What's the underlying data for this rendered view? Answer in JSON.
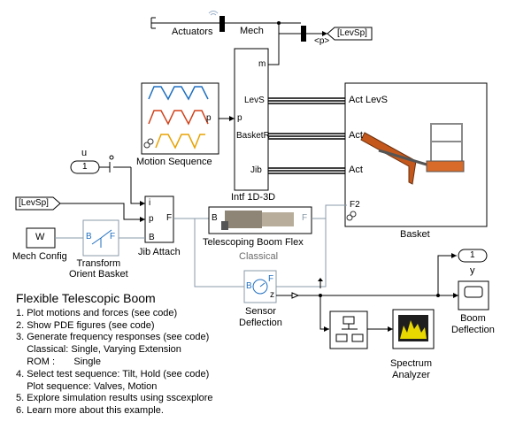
{
  "blocks": {
    "actuators": {
      "label": "Actuators"
    },
    "mech_tag": {
      "label": "Mech"
    },
    "goto_levsp": {
      "label": "[LevSp]"
    },
    "from_levsp": {
      "label": "[LevSp]"
    },
    "selector": {
      "label": "<p>"
    },
    "motion_sequence": {
      "label": "Motion Sequence",
      "port": "p"
    },
    "intf": {
      "label": "Intf 1D-3D",
      "ports_left": [
        "p"
      ],
      "ports_right": [
        "m",
        "LevS",
        "BasketR",
        "Jib"
      ]
    },
    "basket": {
      "label": "Basket",
      "ports": [
        "Act LevS",
        "Act",
        "Act",
        "F2"
      ]
    },
    "jib_attach": {
      "label": "Jib Attach",
      "ports": [
        "i",
        "p",
        "B"
      ],
      "out_port": "F"
    },
    "in_u": {
      "label": "u",
      "value": "1"
    },
    "mech_config": {
      "label": "Mech Config",
      "symbol": "W"
    },
    "transform": {
      "label": "Transform\nOrient Basket",
      "ports": [
        "B",
        "F"
      ]
    },
    "telescoping": {
      "label": "Telescoping Boom Flex",
      "sublabel": "Classical",
      "ports": [
        "B",
        "F"
      ]
    },
    "sensor": {
      "label": "Sensor\nDeflection",
      "ports": [
        "B",
        "F",
        "z"
      ]
    },
    "out_y": {
      "label": "y",
      "value": "1"
    },
    "boom_deflection": {
      "label": "Boom\nDeflection"
    },
    "spectrum": {
      "label": "Spectrum\nAnalyzer"
    }
  },
  "notes": {
    "title": "Flexible Telescopic Boom",
    "lines": [
      "1. Plot motions and forces (see code)",
      "2. Show PDE figures (see code)",
      "3. Generate frequency responses (see code)",
      "    Classical: Single, Varying Extension",
      "    ROM :       Single",
      "4. Select test sequence: Tilt, Hold (see code)",
      "    Plot sequence: Valves, Motion",
      "5. Explore simulation results using sscexplore",
      "6. Learn more about this example."
    ]
  },
  "colors": {
    "wave_blue": "#1f6fc0",
    "wave_red": "#d0421b",
    "wave_yellow": "#e8a200",
    "boom_orange": "#c4581c",
    "phys_line": "#8a9aa8",
    "spectrum_bg": "#1e1e1e",
    "spectrum_fill": "#e8d800"
  }
}
